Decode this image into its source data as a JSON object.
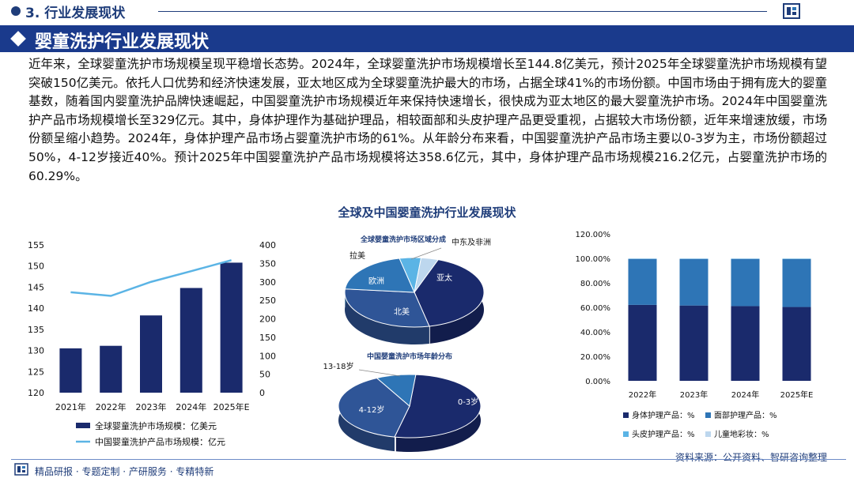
{
  "header": {
    "section_title": "3. 行业发展现状",
    "banner_title": "婴童洗护行业发展现状",
    "logo_icon": "brand-logo-icon"
  },
  "paragraph": "近年来，全球婴童洗护市场规模呈现平稳增长态势。2024年，全球婴童洗护市场规模增长至144.8亿美元，预计2025年全球婴童洗护市场规模有望突破150亿美元。依托人口优势和经济快速发展，亚太地区成为全球婴童洗护最大的市场，占据全球41%的市场份额。中国市场由于拥有庞大的婴童基数，随着国内婴童洗护品牌快速崛起，中国婴童洗护市场规模近年来保持快速增长，很快成为亚太地区的最大婴童洗护市场。2024年中国婴童洗护产品市场规模增长至329亿元。其中，身体护理作为基础护理品，相较面部和头皮护理产品更受重视，占据较大市场份额，近年来增速放缓，市场份额呈缩小趋势。2024年，身体护理产品市场占婴童洗护市场的61%。从年龄分布来看，中国婴童洗护产品市场主要以0-3岁为主，市场份额超过50%，4-12岁接近40%。预计2025年中国婴童洗护产品市场规模将达358.6亿元，其中，身体护理产品市场规模216.2亿元，占婴童洗护市场的60.29%。",
  "panel_title": "全球及中国婴童洗护行业发展现状",
  "footer": {
    "left": "精品研报 · 专题定制 · 产研服务 · 专精特新",
    "source": "资料来源：公开资料、智研咨询整理"
  },
  "colors": {
    "navy": "#1a2a6c",
    "mid_blue": "#2f5597",
    "blue": "#2e75b6",
    "light_blue": "#5bb4e5",
    "pale_blue": "#bdd7ee",
    "title_blue": "#1f3d7a"
  },
  "chart_data": [
    {
      "type": "bar",
      "categories": [
        "2021年",
        "2022年",
        "2023年",
        "2024年",
        "2025年E"
      ],
      "ylim": [
        120,
        155
      ],
      "yticks": [
        120,
        125,
        130,
        135,
        140,
        145,
        150,
        155
      ],
      "y2lim": [
        0,
        400
      ],
      "y2ticks": [
        0,
        50,
        100,
        150,
        200,
        250,
        300,
        350,
        400
      ],
      "series": [
        {
          "name": "全球婴童洗护市场规模：亿美元",
          "kind": "bar",
          "axis": "left",
          "values": [
            130.5,
            131.1,
            138.3,
            144.8,
            150.8
          ]
        },
        {
          "name": "中国婴童洗护产品市场规模：亿元",
          "kind": "line",
          "axis": "right",
          "values": [
            272,
            262,
            300,
            329,
            358.6
          ]
        }
      ],
      "legend": "bottom"
    },
    {
      "type": "pie",
      "title": "全球婴童洗护市场区域分成",
      "labels": [
        "亚太",
        "北美",
        "欧洲",
        "拉美",
        "中东及非洲"
      ],
      "values": [
        41,
        30,
        20,
        5,
        4
      ]
    },
    {
      "type": "pie",
      "title": "中国婴童洗护市场年龄分布",
      "labels": [
        "0-3岁",
        "4-12岁",
        "13-18岁"
      ],
      "values": [
        52,
        39,
        9
      ]
    },
    {
      "type": "bar",
      "stacked": true,
      "categories": [
        "2022年",
        "2023年",
        "2024年",
        "2025年E"
      ],
      "ylim": [
        0,
        120
      ],
      "yticks": [
        "0.00%",
        "20.00%",
        "40.00%",
        "60.00%",
        "80.00%",
        "100.00%",
        "120.00%"
      ],
      "series": [
        {
          "name": "身体护理产品：%",
          "values": [
            62,
            61.5,
            61,
            60.29
          ]
        },
        {
          "name": "面部护理产品：%",
          "values": [
            37.5,
            38,
            38.5,
            39.2
          ]
        },
        {
          "name": "头皮护理产品：%",
          "values": [
            0.3,
            0.3,
            0.3,
            0.3
          ]
        },
        {
          "name": "儿童地彩妆：%",
          "values": [
            0.2,
            0.2,
            0.2,
            0.21
          ]
        }
      ],
      "legend": "bottom"
    }
  ]
}
